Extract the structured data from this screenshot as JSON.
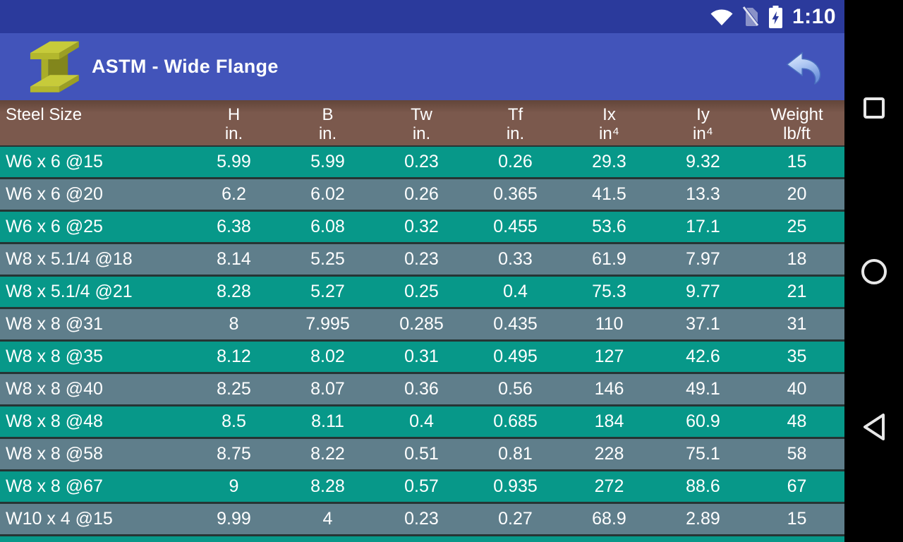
{
  "status_bar": {
    "time": "1:10",
    "icons": [
      "wifi-icon",
      "no-sim-icon",
      "battery-charging-icon"
    ]
  },
  "app_bar": {
    "title": "ASTM - Wide Flange",
    "logo_icon": "i-beam-icon",
    "back_icon": "back-arrow-icon"
  },
  "table": {
    "columns": [
      {
        "label": "Steel Size",
        "unit": ""
      },
      {
        "label": "H",
        "unit": "in."
      },
      {
        "label": "B",
        "unit": "in."
      },
      {
        "label": "Tw",
        "unit": "in."
      },
      {
        "label": "Tf",
        "unit": "in."
      },
      {
        "label": "Ix",
        "unit": "in⁴"
      },
      {
        "label": "Iy",
        "unit": "in⁴"
      },
      {
        "label": "Weight",
        "unit": "lb/ft"
      }
    ],
    "rows": [
      [
        "W6 x 6 @15",
        "5.99",
        "5.99",
        "0.23",
        "0.26",
        "29.3",
        "9.32",
        "15"
      ],
      [
        "W6 x 6 @20",
        "6.2",
        "6.02",
        "0.26",
        "0.365",
        "41.5",
        "13.3",
        "20"
      ],
      [
        "W6 x 6 @25",
        "6.38",
        "6.08",
        "0.32",
        "0.455",
        "53.6",
        "17.1",
        "25"
      ],
      [
        "W8 x 5.1/4 @18",
        "8.14",
        "5.25",
        "0.23",
        "0.33",
        "61.9",
        "7.97",
        "18"
      ],
      [
        "W8 x 5.1/4 @21",
        "8.28",
        "5.27",
        "0.25",
        "0.4",
        "75.3",
        "9.77",
        "21"
      ],
      [
        "W8 x 8 @31",
        "8",
        "7.995",
        "0.285",
        "0.435",
        "110",
        "37.1",
        "31"
      ],
      [
        "W8 x 8 @35",
        "8.12",
        "8.02",
        "0.31",
        "0.495",
        "127",
        "42.6",
        "35"
      ],
      [
        "W8 x 8 @40",
        "8.25",
        "8.07",
        "0.36",
        "0.56",
        "146",
        "49.1",
        "40"
      ],
      [
        "W8 x 8 @48",
        "8.5",
        "8.11",
        "0.4",
        "0.685",
        "184",
        "60.9",
        "48"
      ],
      [
        "W8 x 8 @58",
        "8.75",
        "8.22",
        "0.51",
        "0.81",
        "228",
        "75.1",
        "58"
      ],
      [
        "W8 x 8 @67",
        "9",
        "8.28",
        "0.57",
        "0.935",
        "272",
        "88.6",
        "67"
      ],
      [
        "W10 x 4 @15",
        "9.99",
        "4",
        "0.23",
        "0.27",
        "68.9",
        "2.89",
        "15"
      ]
    ]
  },
  "nav_bar": {
    "buttons": [
      "recents-square-icon",
      "home-circle-icon",
      "back-triangle-icon"
    ]
  },
  "colors": {
    "status_bar": "#2B3A9C",
    "app_bar": "#4254BA",
    "header_brown": "#7B594D",
    "row_teal": "#079889",
    "row_blue_gray": "#5F7E8B",
    "nav_black": "#000000",
    "text": "#FFFFFF"
  }
}
